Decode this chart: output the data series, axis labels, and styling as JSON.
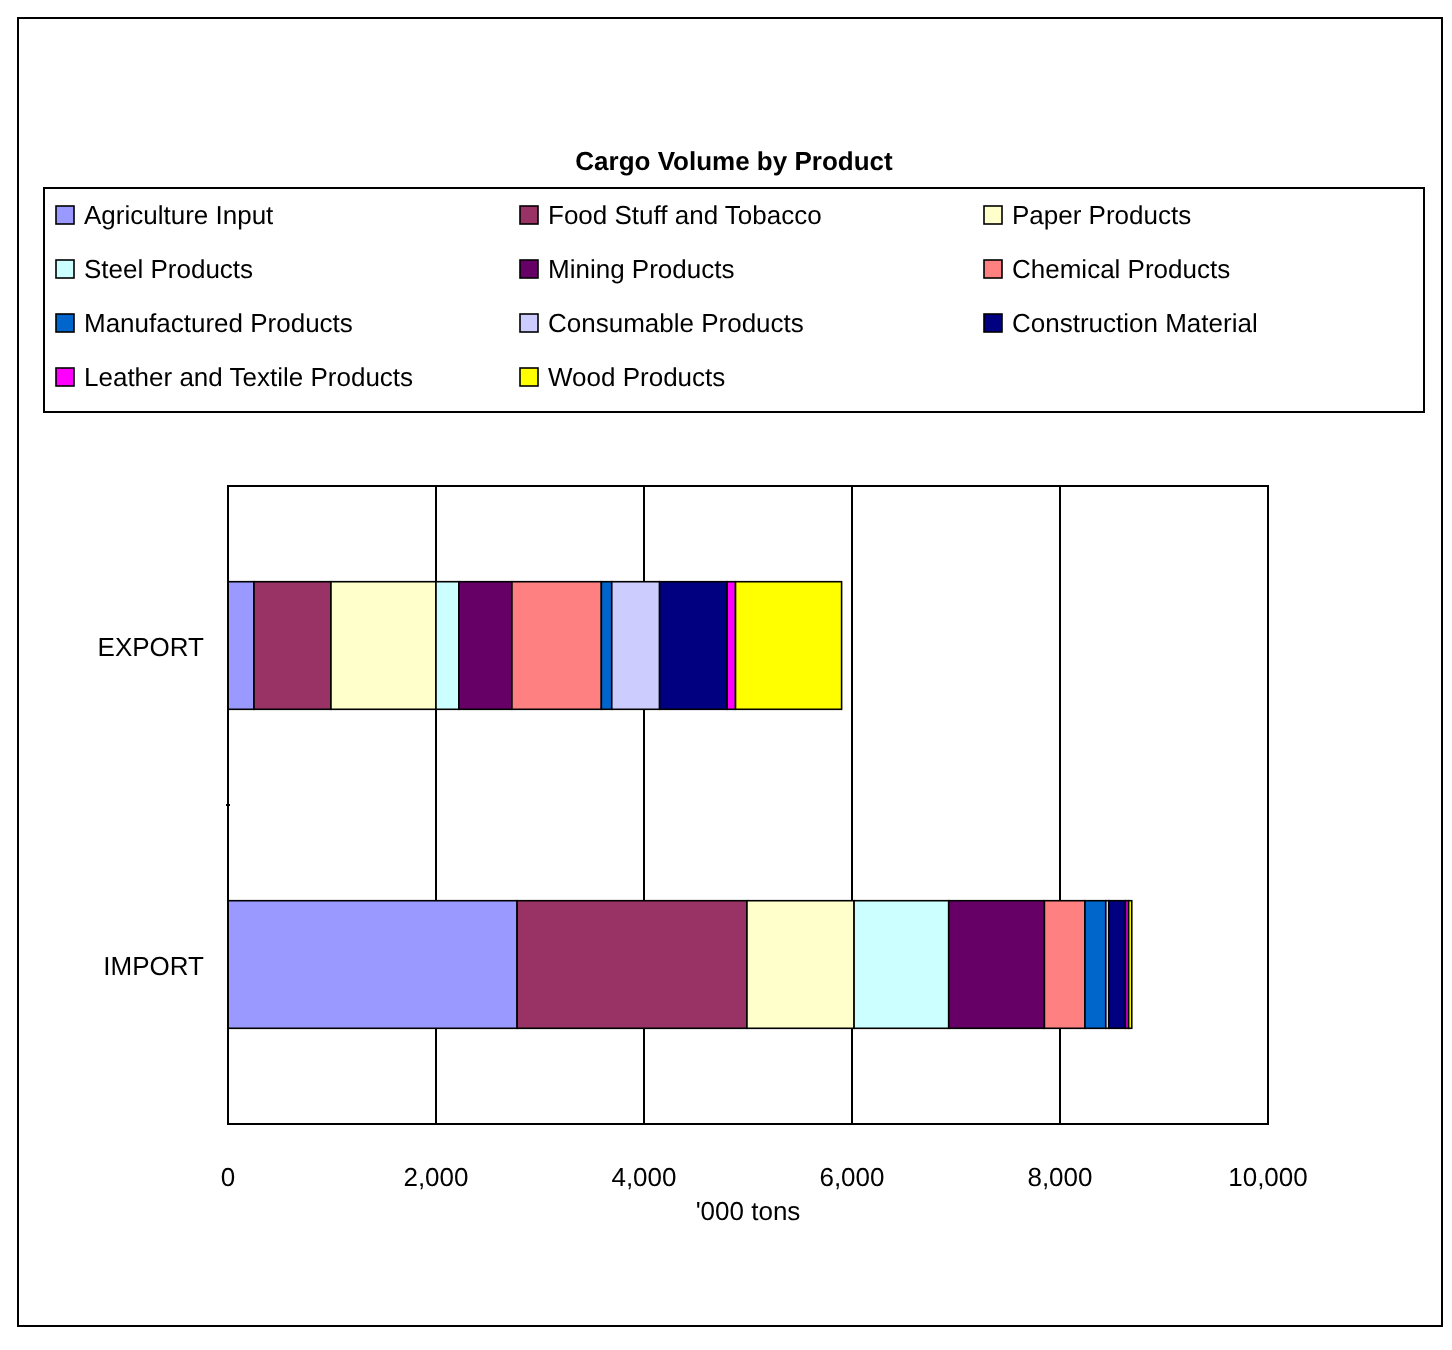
{
  "chart_data": {
    "type": "bar",
    "title": "Cargo Volume by Product",
    "xlabel": "'000 tons",
    "orientation": "horizontal",
    "stacked": true,
    "categories": [
      "EXPORT",
      "IMPORT"
    ],
    "series": [
      {
        "name": "Agriculture Input",
        "color": "#9999ff",
        "values": [
          250,
          2780
        ]
      },
      {
        "name": "Food Stuff and Tobacco",
        "color": "#993366",
        "values": [
          740,
          2210
        ]
      },
      {
        "name": "Paper Products",
        "color": "#ffffcc",
        "values": [
          1010,
          1030
        ]
      },
      {
        "name": "Steel Products",
        "color": "#ccffff",
        "values": [
          220,
          910
        ]
      },
      {
        "name": "Mining Products",
        "color": "#660066",
        "values": [
          510,
          920
        ]
      },
      {
        "name": "Chemical Products",
        "color": "#ff8080",
        "values": [
          860,
          390
        ]
      },
      {
        "name": "Manufactured Products",
        "color": "#0066cc",
        "values": [
          100,
          200
        ]
      },
      {
        "name": "Consumable Products",
        "color": "#ccccff",
        "values": [
          460,
          30
        ]
      },
      {
        "name": "Construction Material",
        "color": "#000080",
        "values": [
          650,
          160
        ]
      },
      {
        "name": "Leather and Textile Products",
        "color": "#ff00ff",
        "values": [
          80,
          30
        ]
      },
      {
        "name": "Wood Products",
        "color": "#ffff00",
        "values": [
          1020,
          30
        ]
      }
    ],
    "xlim": [
      0,
      10000
    ],
    "xticks": [
      {
        "value": 0,
        "label": "0"
      },
      {
        "value": 2000,
        "label": "2,000"
      },
      {
        "value": 4000,
        "label": "4,000"
      },
      {
        "value": 6000,
        "label": "6,000"
      },
      {
        "value": 8000,
        "label": "8,000"
      },
      {
        "value": 10000,
        "label": "10,000"
      }
    ],
    "grid": "x",
    "legend": "top"
  }
}
